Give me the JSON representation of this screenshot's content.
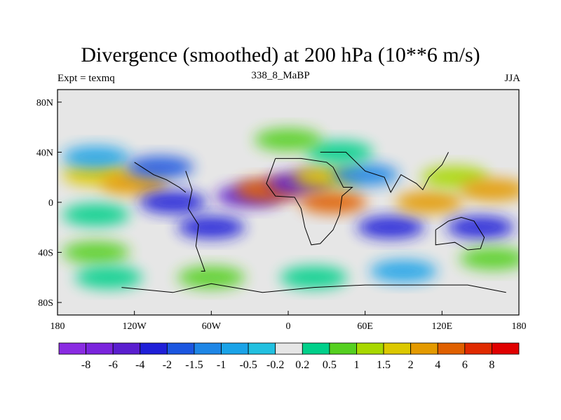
{
  "chart_data": {
    "type": "heatmap",
    "title": "Divergence (smoothed) at 200 hPa (10**6 m/s)",
    "experiment": "Expt = texmq",
    "subtitle": "338_8_MaBP",
    "season": "JJA",
    "x_ticks": [
      "180",
      "120W",
      "60W",
      "0",
      "60E",
      "120E",
      "180"
    ],
    "x_values": [
      -180,
      -120,
      -60,
      0,
      60,
      120,
      180
    ],
    "y_ticks": [
      "80N",
      "40N",
      "0",
      "40S",
      "80S"
    ],
    "y_values": [
      80,
      40,
      0,
      -40,
      -80
    ],
    "xlim": [
      -180,
      180
    ],
    "ylim": [
      -90,
      90
    ],
    "colorbar": {
      "labels": [
        "-8",
        "-6",
        "-4",
        "-2",
        "-1.5",
        "-1",
        "-0.5",
        "-0.2",
        "0.2",
        "0.5",
        "1",
        "1.5",
        "2",
        "4",
        "6",
        "8"
      ],
      "colors": [
        "#8a2be2",
        "#7a24dd",
        "#5a1ecf",
        "#1f1fd8",
        "#1b56e0",
        "#1e86e6",
        "#1aa3e8",
        "#22c0e0",
        "#e6e6e6",
        "#00d08a",
        "#55d020",
        "#a8d800",
        "#dcc800",
        "#e49a00",
        "#e06000",
        "#e02a00",
        "#e00000"
      ]
    },
    "fields": [
      {
        "lon": -150,
        "lat": 22,
        "value": 2
      },
      {
        "lon": -150,
        "lat": 36,
        "value": -0.5
      },
      {
        "lon": -150,
        "lat": -10,
        "value": 0.5
      },
      {
        "lon": -150,
        "lat": -40,
        "value": 1
      },
      {
        "lon": -120,
        "lat": 15,
        "value": 4
      },
      {
        "lon": -100,
        "lat": 28,
        "value": -1.5
      },
      {
        "lon": -90,
        "lat": 0,
        "value": -2
      },
      {
        "lon": -60,
        "lat": -20,
        "value": -2
      },
      {
        "lon": -30,
        "lat": 5,
        "value": -4
      },
      {
        "lon": -15,
        "lat": 10,
        "value": 6
      },
      {
        "lon": 10,
        "lat": 15,
        "value": -4
      },
      {
        "lon": 35,
        "lat": 0,
        "value": 6
      },
      {
        "lon": 30,
        "lat": 20,
        "value": 2
      },
      {
        "lon": 60,
        "lat": 22,
        "value": -1
      },
      {
        "lon": 80,
        "lat": -20,
        "value": -2
      },
      {
        "lon": 110,
        "lat": 0,
        "value": 4
      },
      {
        "lon": 130,
        "lat": 20,
        "value": 1.5
      },
      {
        "lon": 150,
        "lat": -20,
        "value": -2
      },
      {
        "lon": 160,
        "lat": 10,
        "value": 4
      },
      {
        "lon": 40,
        "lat": 40,
        "value": 0.5
      },
      {
        "lon": 0,
        "lat": 50,
        "value": 1
      },
      {
        "lon": 20,
        "lat": -60,
        "value": 0.5
      },
      {
        "lon": 90,
        "lat": -55,
        "value": -0.5
      },
      {
        "lon": -60,
        "lat": -60,
        "value": 1
      },
      {
        "lon": -140,
        "lat": -60,
        "value": 0.5
      },
      {
        "lon": 160,
        "lat": -45,
        "value": 1
      }
    ]
  }
}
